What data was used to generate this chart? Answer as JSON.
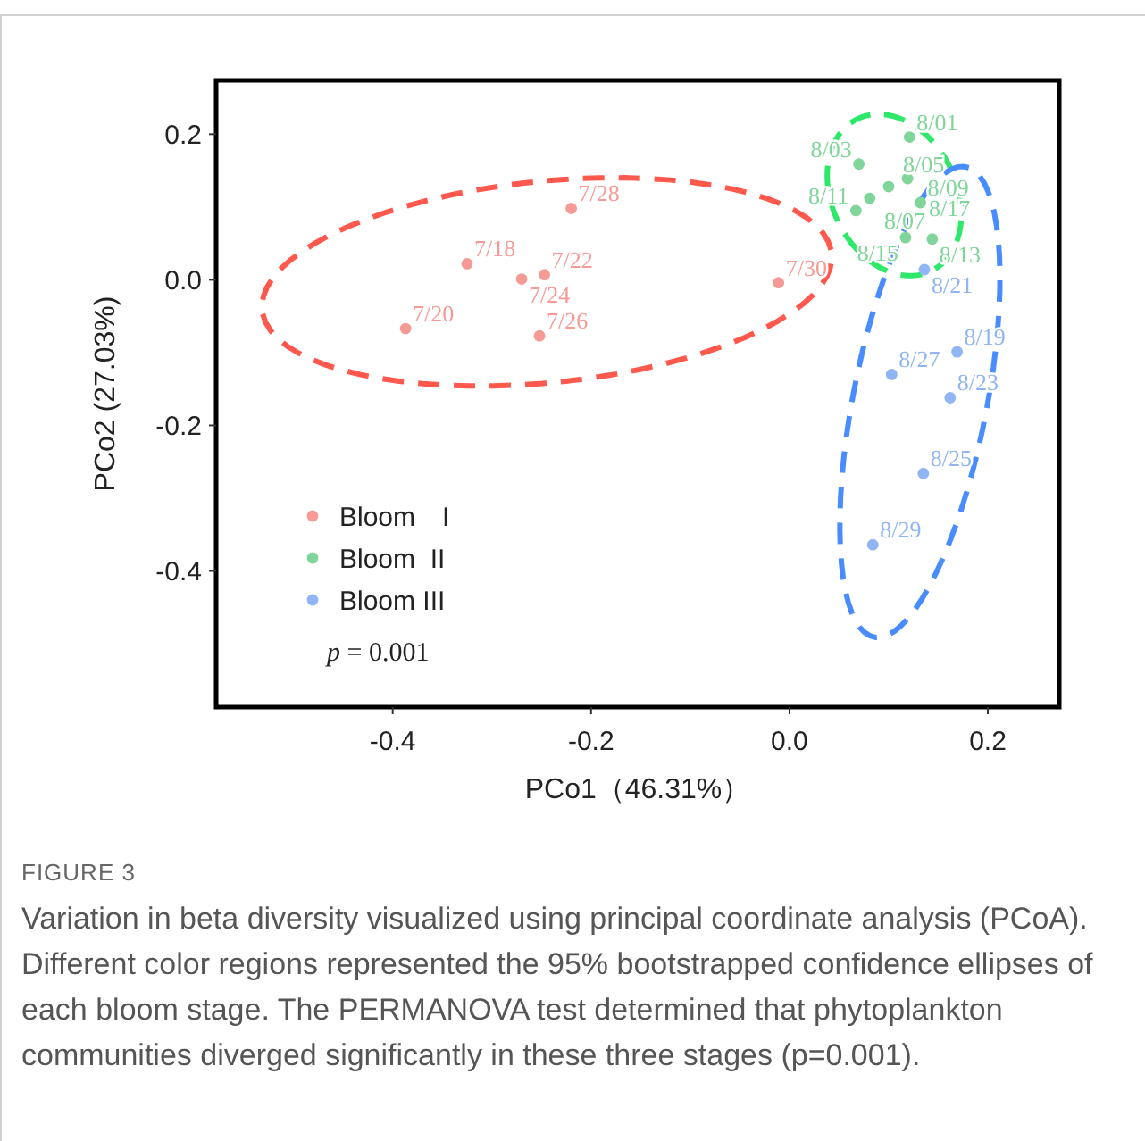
{
  "chart_data": {
    "type": "scatter",
    "xlabel": "PCo1（46.31%）",
    "ylabel": "PCo2 (27.03%)",
    "xlim": [
      -0.578,
      0.272
    ],
    "ylim": [
      -0.587,
      0.274
    ],
    "xticks": [
      -0.4,
      -0.2,
      {
        "value": 0,
        "label": "0.0"
      },
      0.2
    ],
    "yticks": [
      0.2,
      {
        "value": 0,
        "label": "0.0"
      },
      -0.2,
      -0.4
    ],
    "legend": "bottom left",
    "marker": "circle",
    "series": [
      {
        "name": "Bloom　I",
        "color": "#f59a94",
        "x": [
          -0.22,
          -0.325,
          -0.247,
          -0.27,
          -0.387,
          -0.252,
          -0.011
        ],
        "values": [
          0.098,
          0.022,
          0.007,
          0.001,
          -0.067,
          -0.077,
          -0.004
        ]
      },
      {
        "name": "Bloom  II",
        "color": "#7fd59a",
        "x": [
          0.121,
          0.07,
          0.1,
          0.119,
          0.067,
          0.081,
          0.132,
          0.117,
          0.144
        ],
        "values": [
          0.196,
          0.159,
          0.128,
          0.139,
          0.095,
          0.112,
          0.106,
          0.058,
          0.056
        ]
      },
      {
        "name": "Bloom III",
        "color": "#8fb5f5",
        "x": [
          0.136,
          0.169,
          0.103,
          0.162,
          0.135,
          0.084
        ],
        "values": [
          0.014,
          -0.099,
          -0.13,
          -0.162,
          -0.266,
          -0.364
        ]
      }
    ],
    "annotations": [
      "p = 0.001",
      "FIGURE 3",
      "Variation in beta diversity visualized using principal coordinate analysis (PCoA). Different color regions represented the 95% bootstrapped confidence ellipses of each bloom stage. The PERMANOVA test determined that phytoplankton communities diverged significantly in these three stages (p=0.001).",
      {
        "text": "7/28",
        "x": -0.22,
        "y": 0.098
      },
      {
        "text": "7/18",
        "x": -0.325,
        "y": 0.022
      },
      {
        "text": "7/22",
        "x": -0.247,
        "y": 0.007
      },
      {
        "text": "7/24",
        "x": -0.27,
        "y": 0.001
      },
      {
        "text": "7/20",
        "x": -0.387,
        "y": -0.067
      },
      {
        "text": "7/26",
        "x": -0.252,
        "y": -0.077
      },
      {
        "text": "7/30",
        "x": -0.011,
        "y": -0.004
      },
      {
        "text": "8/01",
        "x": 0.121,
        "y": 0.196
      },
      {
        "text": "8/03",
        "x": 0.07,
        "y": 0.159
      },
      {
        "text": "8/05",
        "x": 0.1,
        "y": 0.128
      },
      {
        "text": "8/17",
        "x": 0.119,
        "y": 0.139
      },
      {
        "text": "8/11",
        "x": 0.067,
        "y": 0.095
      },
      {
        "text": "8/07",
        "x": 0.081,
        "y": 0.112
      },
      {
        "text": "8/09",
        "x": 0.132,
        "y": 0.106
      },
      {
        "text": "8/15",
        "x": 0.117,
        "y": 0.058
      },
      {
        "text": "8/13",
        "x": 0.144,
        "y": 0.056
      },
      {
        "text": "8/21",
        "x": 0.136,
        "y": 0.014
      },
      {
        "text": "8/19",
        "x": 0.169,
        "y": -0.099
      },
      {
        "text": "8/27",
        "x": 0.103,
        "y": -0.13
      },
      {
        "text": "8/23",
        "x": 0.162,
        "y": -0.162
      },
      {
        "text": "8/25",
        "x": 0.135,
        "y": -0.266
      },
      {
        "text": "8/29",
        "x": 0.084,
        "y": -0.364
      }
    ]
  }
}
